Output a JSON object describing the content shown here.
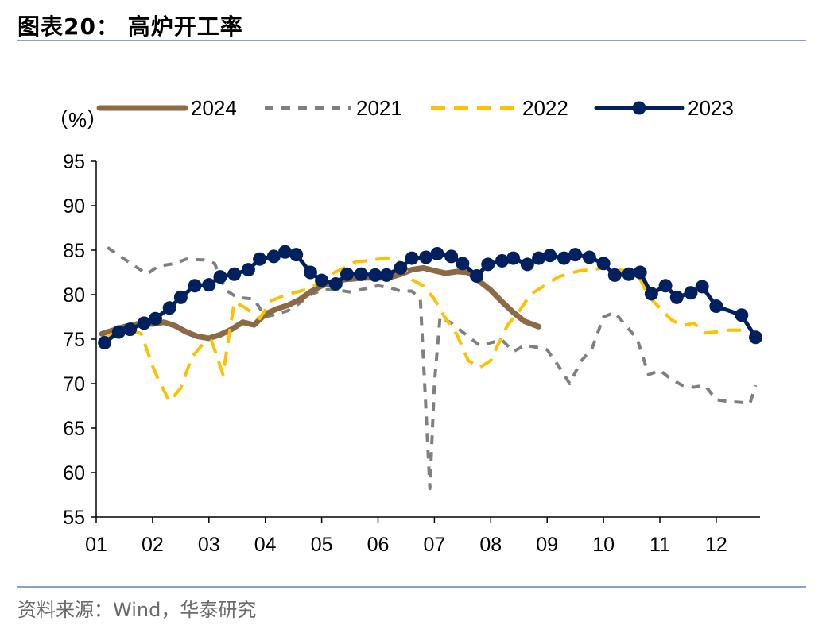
{
  "header": {
    "title": "图表20：  高炉开工率"
  },
  "footer": {
    "source": "资料来源：Wind，华泰研究"
  },
  "chart_data": {
    "type": "line",
    "unit_label": "（%）",
    "ylim": [
      55,
      95
    ],
    "yticks": [
      55,
      60,
      65,
      70,
      75,
      80,
      85,
      90,
      95
    ],
    "xlim": [
      1,
      12.8
    ],
    "xtick_labels": [
      "01",
      "02",
      "03",
      "04",
      "05",
      "06",
      "07",
      "08",
      "09",
      "10",
      "11",
      "12"
    ],
    "grid": false,
    "legend_position": "top",
    "series": [
      {
        "name": "2024",
        "color": "#8b6a45",
        "style": "solid",
        "width": 7,
        "markers": false,
        "x": [
          1.1,
          1.3,
          1.5,
          1.8,
          2.0,
          2.2,
          2.4,
          2.6,
          2.8,
          3.0,
          3.2,
          3.4,
          3.6,
          3.8,
          4.0,
          4.2,
          4.4,
          4.6,
          4.8,
          5.0,
          5.2,
          5.4,
          5.6,
          5.8,
          6.0,
          6.2,
          6.4,
          6.6,
          6.8,
          7.0,
          7.2,
          7.4,
          7.6,
          7.8,
          8.0,
          8.2,
          8.4,
          8.6,
          8.85
        ],
        "y": [
          75.6,
          76.0,
          76.4,
          76.8,
          76.7,
          76.9,
          76.5,
          75.8,
          75.3,
          75.1,
          75.5,
          76.1,
          76.9,
          76.6,
          77.8,
          78.4,
          78.8,
          79.4,
          80.3,
          81.0,
          81.3,
          81.7,
          81.8,
          81.9,
          81.9,
          81.9,
          82.3,
          82.8,
          83.0,
          82.7,
          82.4,
          82.6,
          82.5,
          81.5,
          80.5,
          79.2,
          78.0,
          77.0,
          76.4
        ]
      },
      {
        "name": "2021",
        "color": "#808080",
        "style": "dash",
        "width": 4,
        "markers": false,
        "x": [
          1.2,
          1.5,
          1.9,
          2.1,
          2.4,
          2.6,
          2.9,
          3.1,
          3.3,
          3.5,
          3.8,
          4.0,
          4.2,
          4.4,
          4.6,
          4.8,
          5.0,
          5.2,
          5.5,
          5.8,
          6.0,
          6.2,
          6.4,
          6.6,
          6.75,
          6.85,
          6.92,
          7.0,
          7.1,
          7.3,
          7.6,
          7.8,
          8.0,
          8.2,
          8.4,
          8.6,
          8.8,
          9.0,
          9.2,
          9.4,
          9.6,
          9.8,
          10.0,
          10.2,
          10.4,
          10.6,
          10.8,
          11.0,
          11.2,
          11.4,
          11.6,
          11.8,
          12.0,
          12.2,
          12.4,
          12.6,
          12.7
        ],
        "y": [
          85.3,
          84.0,
          82.3,
          83.2,
          83.5,
          84.0,
          83.9,
          83.5,
          80.5,
          79.7,
          79.5,
          77.5,
          77.8,
          78.2,
          79.0,
          80.0,
          80.5,
          80.6,
          80.3,
          80.7,
          81.0,
          80.8,
          80.4,
          80.4,
          79.5,
          67.0,
          58.2,
          70.0,
          77.5,
          76.8,
          75.3,
          74.3,
          74.6,
          74.9,
          73.6,
          74.3,
          74.1,
          73.8,
          72.0,
          70.0,
          72.5,
          74.0,
          77.5,
          78.0,
          76.5,
          75.0,
          71.0,
          71.5,
          70.5,
          69.8,
          69.6,
          69.8,
          68.2,
          68.0,
          67.9,
          67.8,
          69.8
        ]
      },
      {
        "name": "2022",
        "color": "#ffc000",
        "style": "dash",
        "width": 4,
        "markers": false,
        "x": [
          1.2,
          1.4,
          1.6,
          1.8,
          2.0,
          2.1,
          2.3,
          2.5,
          2.7,
          2.9,
          3.05,
          3.25,
          3.45,
          3.65,
          3.9,
          4.1,
          4.3,
          4.5,
          4.8,
          5.0,
          5.2,
          5.4,
          5.6,
          5.8,
          6.0,
          6.2,
          6.4,
          6.6,
          6.8,
          7.0,
          7.2,
          7.4,
          7.6,
          7.8,
          8.0,
          8.1,
          8.3,
          8.5,
          8.7,
          9.0,
          9.2,
          9.4,
          9.6,
          9.8,
          10.0,
          10.2,
          10.4,
          10.6,
          10.8,
          11.0,
          11.2,
          11.4,
          11.6,
          11.8,
          12.0,
          12.2,
          12.4,
          12.6,
          12.7
        ],
        "y": [
          75.4,
          75.7,
          76.1,
          75.6,
          72.0,
          70.5,
          68.0,
          69.5,
          73.0,
          74.5,
          74.8,
          71.0,
          79.2,
          78.5,
          77.3,
          79.3,
          79.8,
          80.2,
          80.7,
          81.6,
          82.4,
          83.0,
          83.7,
          83.8,
          84.0,
          84.1,
          83.6,
          81.7,
          81.0,
          79.5,
          77.3,
          75.5,
          72.6,
          71.8,
          72.6,
          74.0,
          76.6,
          78.1,
          80.0,
          81.2,
          82.0,
          82.4,
          82.7,
          82.8,
          83.0,
          82.8,
          82.7,
          82.4,
          79.8,
          78.5,
          77.2,
          76.5,
          76.8,
          75.7,
          75.8,
          76.0,
          76.0,
          76.1,
          75.3
        ]
      },
      {
        "name": "2023",
        "color": "#002060",
        "style": "solid",
        "width": 5,
        "markers": true,
        "x": [
          1.15,
          1.4,
          1.6,
          1.85,
          2.05,
          2.3,
          2.5,
          2.75,
          3.0,
          3.2,
          3.45,
          3.7,
          3.9,
          4.15,
          4.35,
          4.55,
          4.8,
          5.0,
          5.25,
          5.45,
          5.7,
          5.95,
          6.15,
          6.4,
          6.6,
          6.85,
          7.05,
          7.3,
          7.5,
          7.75,
          7.95,
          8.2,
          8.4,
          8.65,
          8.85,
          9.05,
          9.3,
          9.5,
          9.75,
          10.0,
          10.2,
          10.45,
          10.65,
          10.85,
          11.1,
          11.3,
          11.55,
          11.75,
          12.0,
          12.45,
          12.7
        ],
        "y": [
          74.6,
          75.8,
          76.1,
          76.8,
          77.3,
          78.5,
          79.7,
          81.0,
          81.1,
          82.0,
          82.3,
          82.8,
          84.0,
          84.3,
          84.8,
          84.5,
          82.5,
          81.6,
          81.2,
          82.3,
          82.3,
          82.2,
          82.2,
          83.0,
          84.1,
          84.2,
          84.6,
          84.3,
          83.5,
          82.1,
          83.4,
          83.8,
          84.1,
          83.4,
          84.1,
          84.4,
          84.1,
          84.5,
          84.2,
          83.5,
          82.2,
          82.3,
          82.5,
          80.1,
          81.0,
          79.7,
          80.2,
          80.9,
          78.7,
          77.7,
          75.2
        ]
      }
    ]
  }
}
